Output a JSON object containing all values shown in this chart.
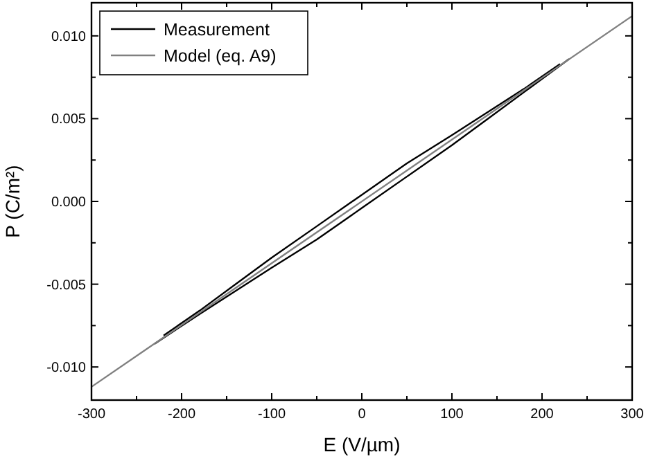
{
  "chart_data": {
    "type": "line",
    "xlabel": "E (V/µm)",
    "ylabel": "P (C/m²)",
    "xlim": [
      -300,
      300
    ],
    "ylim": [
      -0.012,
      0.012
    ],
    "xticks": [
      -300,
      -200,
      -100,
      0,
      100,
      200,
      300
    ],
    "yticks": [
      {
        "value": -0.01,
        "label": "-0.010"
      },
      {
        "value": -0.005,
        "label": "-0.005"
      },
      {
        "value": 0,
        "label": "0.000"
      },
      {
        "value": 0.005,
        "label": "0.005"
      },
      {
        "value": 0.01,
        "label": "0.010"
      }
    ],
    "grid": false,
    "legend": "top left",
    "marker": "none",
    "line_style": "solid",
    "series": [
      {
        "name": "Measurement",
        "color": "#000000",
        "x": [
          -230,
          -180,
          -140,
          -100,
          -50,
          0,
          50,
          100,
          140,
          180,
          230
        ],
        "values": [
          -0.0086,
          -0.0068,
          -0.0054,
          -0.004,
          -0.0023,
          -0.0004,
          0.0015,
          0.0034,
          0.005,
          0.0066,
          0.0086
        ]
      },
      {
        "color": "#000000",
        "x": [
          -220,
          -180,
          -140,
          -100,
          -50,
          0,
          50,
          100,
          140,
          180,
          220
        ],
        "values": [
          -0.0081,
          -0.0066,
          -0.005,
          -0.0034,
          -0.0015,
          0.0004,
          0.0023,
          0.004,
          0.0054,
          0.0068,
          0.0083
        ]
      },
      {
        "name": "Model (eq. A9)",
        "color": "#808080",
        "x": [
          -300,
          300
        ],
        "values": [
          -0.0112,
          0.0112
        ]
      }
    ]
  }
}
